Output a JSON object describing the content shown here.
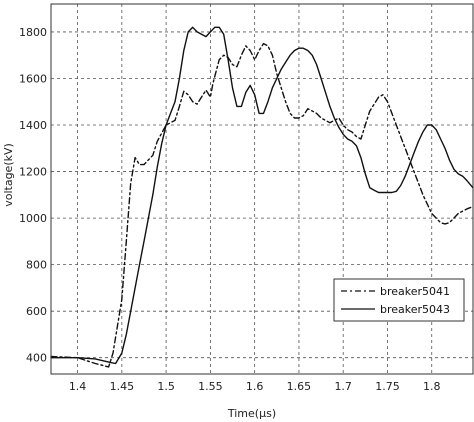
{
  "chart_data": {
    "type": "line",
    "title": "",
    "xlabel": "Time(μs)",
    "ylabel": "voltage(kV)",
    "xlim": [
      1.37,
      1.8466
    ],
    "ylim": [
      330,
      1920
    ],
    "x_ticks": [
      1.4,
      1.45,
      1.5,
      1.55,
      1.6,
      1.65,
      1.7,
      1.75,
      1.8
    ],
    "x_tick_labels": [
      "1.4",
      "1.45",
      "1.5",
      "1.55",
      "1.6",
      "1.65",
      "1.7",
      "1.75",
      "1.8"
    ],
    "y_ticks": [
      400,
      600,
      800,
      1000,
      1200,
      1400,
      1600,
      1800
    ],
    "y_tick_labels": [
      "400",
      "600",
      "800",
      "1000",
      "1200",
      "1400",
      "1600",
      "1800"
    ],
    "grid": true,
    "legend_position": "lower-right",
    "series": [
      {
        "name": "breaker5041",
        "style": "dashed",
        "color": "#111111",
        "x": [
          1.37,
          1.4,
          1.42,
          1.435,
          1.44,
          1.45,
          1.455,
          1.46,
          1.465,
          1.47,
          1.475,
          1.48,
          1.485,
          1.49,
          1.5,
          1.51,
          1.515,
          1.52,
          1.525,
          1.53,
          1.535,
          1.54,
          1.545,
          1.55,
          1.553,
          1.56,
          1.565,
          1.57,
          1.575,
          1.58,
          1.585,
          1.59,
          1.595,
          1.6,
          1.605,
          1.61,
          1.615,
          1.62,
          1.625,
          1.63,
          1.635,
          1.64,
          1.645,
          1.65,
          1.655,
          1.66,
          1.665,
          1.67,
          1.675,
          1.68,
          1.685,
          1.69,
          1.695,
          1.7,
          1.705,
          1.71,
          1.715,
          1.72,
          1.725,
          1.73,
          1.735,
          1.74,
          1.745,
          1.75,
          1.755,
          1.76,
          1.765,
          1.77,
          1.775,
          1.78,
          1.785,
          1.79,
          1.795,
          1.8,
          1.805,
          1.81,
          1.815,
          1.82,
          1.825,
          1.83,
          1.835,
          1.84,
          1.8466
        ],
        "values": [
          405,
          400,
          375,
          360,
          420,
          650,
          900,
          1150,
          1260,
          1230,
          1230,
          1250,
          1270,
          1330,
          1400,
          1420,
          1480,
          1545,
          1530,
          1500,
          1490,
          1520,
          1550,
          1520,
          1580,
          1680,
          1700,
          1690,
          1660,
          1650,
          1700,
          1740,
          1720,
          1680,
          1720,
          1750,
          1740,
          1700,
          1620,
          1560,
          1500,
          1450,
          1430,
          1430,
          1440,
          1470,
          1460,
          1450,
          1430,
          1420,
          1410,
          1420,
          1430,
          1400,
          1380,
          1370,
          1350,
          1340,
          1400,
          1460,
          1490,
          1520,
          1530,
          1500,
          1450,
          1400,
          1350,
          1300,
          1250,
          1200,
          1150,
          1100,
          1060,
          1020,
          1000,
          980,
          975,
          980,
          1000,
          1020,
          1030,
          1040,
          1050
        ]
      },
      {
        "name": "breaker5043",
        "style": "solid",
        "color": "#111111",
        "x": [
          1.37,
          1.4,
          1.42,
          1.437,
          1.443,
          1.45,
          1.455,
          1.46,
          1.465,
          1.47,
          1.475,
          1.48,
          1.485,
          1.49,
          1.495,
          1.5,
          1.505,
          1.51,
          1.515,
          1.52,
          1.525,
          1.53,
          1.535,
          1.54,
          1.545,
          1.55,
          1.555,
          1.56,
          1.565,
          1.57,
          1.575,
          1.58,
          1.585,
          1.59,
          1.595,
          1.6,
          1.605,
          1.61,
          1.615,
          1.62,
          1.625,
          1.63,
          1.635,
          1.64,
          1.645,
          1.65,
          1.655,
          1.66,
          1.665,
          1.67,
          1.675,
          1.68,
          1.685,
          1.69,
          1.695,
          1.7,
          1.705,
          1.71,
          1.715,
          1.72,
          1.725,
          1.73,
          1.735,
          1.74,
          1.745,
          1.75,
          1.755,
          1.76,
          1.765,
          1.77,
          1.775,
          1.78,
          1.785,
          1.79,
          1.795,
          1.8,
          1.805,
          1.81,
          1.815,
          1.82,
          1.825,
          1.83,
          1.835,
          1.84,
          1.8466
        ],
        "values": [
          400,
          400,
          395,
          380,
          375,
          420,
          500,
          600,
          700,
          800,
          900,
          1000,
          1100,
          1220,
          1320,
          1400,
          1450,
          1500,
          1600,
          1720,
          1800,
          1820,
          1800,
          1790,
          1780,
          1800,
          1820,
          1820,
          1790,
          1680,
          1560,
          1480,
          1480,
          1540,
          1570,
          1530,
          1450,
          1450,
          1500,
          1560,
          1600,
          1640,
          1670,
          1700,
          1720,
          1730,
          1730,
          1720,
          1700,
          1660,
          1600,
          1540,
          1480,
          1430,
          1390,
          1360,
          1340,
          1330,
          1310,
          1260,
          1190,
          1130,
          1120,
          1110,
          1110,
          1110,
          1110,
          1115,
          1140,
          1180,
          1230,
          1280,
          1330,
          1370,
          1400,
          1400,
          1380,
          1340,
          1300,
          1250,
          1210,
          1190,
          1180,
          1160,
          1130
        ]
      }
    ]
  }
}
